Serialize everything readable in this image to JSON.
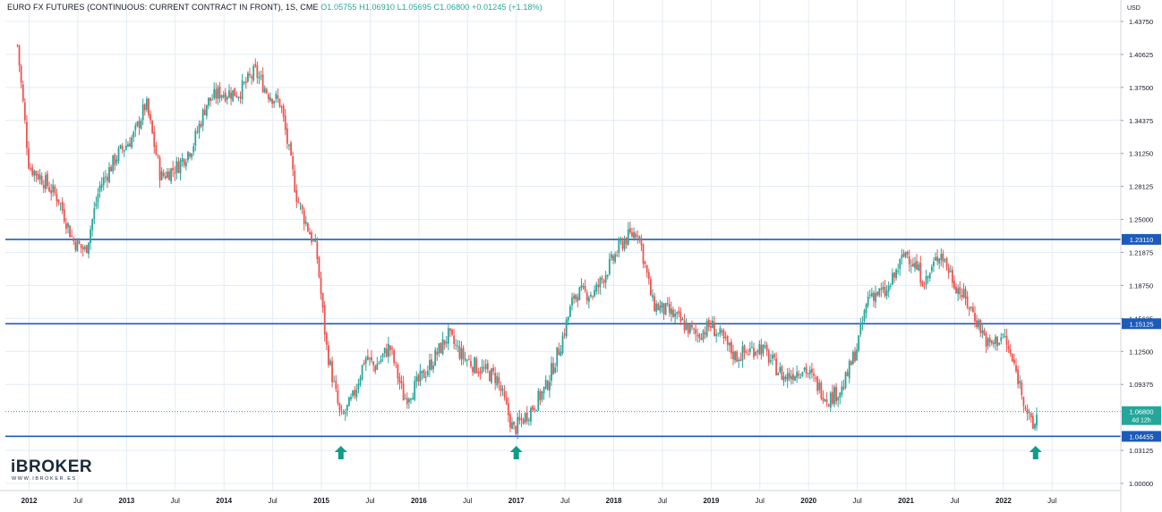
{
  "header": {
    "title": "EURO FX FUTURES (CONTINUOUS: CURRENT CONTRACT IN FRONT), 1S, CME",
    "open": "O1.05755",
    "high": "H1.06910",
    "low": "L1.05695",
    "close": "C1.06800",
    "change": "+0.01245 (+1.18%)"
  },
  "brand": {
    "name": "iBROKER",
    "url": "WWW.IBROKER.ES"
  },
  "colors": {
    "up": "#26a69a",
    "down": "#ef5350",
    "level_line": "#1e5bb8",
    "grid": "#e3ecf5",
    "arrow": "#0f9d8a"
  },
  "chart_data": {
    "type": "candlestick",
    "currency_label": "USD",
    "ylim": [
      1.0,
      1.4375
    ],
    "y_ticks": [
      "1.43750",
      "1.40625",
      "1.37500",
      "1.34375",
      "1.31250",
      "1.28125",
      "1.25000",
      "1.21875",
      "1.18750",
      "1.15625",
      "1.12500",
      "1.09375",
      "1.03125",
      "1.00000"
    ],
    "x_ticks": [
      "2012",
      "Jul",
      "2013",
      "Jul",
      "2014",
      "Jul",
      "2015",
      "Jul",
      "2016",
      "Jul",
      "2017",
      "Jul",
      "2018",
      "Jul",
      "2019",
      "Jul",
      "2020",
      "Jul",
      "2021",
      "Jul",
      "2022",
      "Jul"
    ],
    "horizontal_levels": [
      {
        "price": 1.2311,
        "label": "1.23110"
      },
      {
        "price": 1.15125,
        "label": "1.15125"
      },
      {
        "price": 1.04455,
        "label": "1.04455"
      }
    ],
    "last_price": {
      "price": 1.068,
      "label": "1.06800",
      "countdown": "4d 12h"
    },
    "support_arrows": [
      {
        "date": 2015.2,
        "price": 1.043
      },
      {
        "date": 2017.0,
        "price": 1.043
      },
      {
        "date": 2022.33,
        "price": 1.043
      }
    ],
    "price_path": [
      [
        2011.88,
        1.415
      ],
      [
        2012.0,
        1.3
      ],
      [
        2012.12,
        1.29
      ],
      [
        2012.3,
        1.27
      ],
      [
        2012.45,
        1.23
      ],
      [
        2012.58,
        1.22
      ],
      [
        2012.72,
        1.28
      ],
      [
        2012.9,
        1.31
      ],
      [
        2013.08,
        1.33
      ],
      [
        2013.2,
        1.36
      ],
      [
        2013.35,
        1.29
      ],
      [
        2013.52,
        1.3
      ],
      [
        2013.68,
        1.32
      ],
      [
        2013.82,
        1.36
      ],
      [
        2013.95,
        1.37
      ],
      [
        2014.15,
        1.37
      ],
      [
        2014.32,
        1.39
      ],
      [
        2014.45,
        1.37
      ],
      [
        2014.58,
        1.36
      ],
      [
        2014.75,
        1.27
      ],
      [
        2014.95,
        1.22
      ],
      [
        2015.05,
        1.13
      ],
      [
        2015.2,
        1.06
      ],
      [
        2015.32,
        1.08
      ],
      [
        2015.45,
        1.12
      ],
      [
        2015.55,
        1.11
      ],
      [
        2015.7,
        1.13
      ],
      [
        2015.85,
        1.08
      ],
      [
        2015.95,
        1.09
      ],
      [
        2016.1,
        1.11
      ],
      [
        2016.3,
        1.14
      ],
      [
        2016.45,
        1.12
      ],
      [
        2016.6,
        1.11
      ],
      [
        2016.8,
        1.1
      ],
      [
        2016.97,
        1.05
      ],
      [
        2017.15,
        1.07
      ],
      [
        2017.3,
        1.09
      ],
      [
        2017.45,
        1.13
      ],
      [
        2017.6,
        1.18
      ],
      [
        2017.8,
        1.18
      ],
      [
        2018.1,
        1.23
      ],
      [
        2018.25,
        1.24
      ],
      [
        2018.4,
        1.17
      ],
      [
        2018.6,
        1.16
      ],
      [
        2018.85,
        1.14
      ],
      [
        2019.0,
        1.15
      ],
      [
        2019.25,
        1.12
      ],
      [
        2019.5,
        1.13
      ],
      [
        2019.75,
        1.1
      ],
      [
        2019.95,
        1.11
      ],
      [
        2020.2,
        1.08
      ],
      [
        2020.35,
        1.09
      ],
      [
        2020.5,
        1.13
      ],
      [
        2020.62,
        1.18
      ],
      [
        2020.8,
        1.18
      ],
      [
        2021.0,
        1.22
      ],
      [
        2021.2,
        1.19
      ],
      [
        2021.35,
        1.22
      ],
      [
        2021.5,
        1.19
      ],
      [
        2021.7,
        1.16
      ],
      [
        2021.85,
        1.13
      ],
      [
        2022.0,
        1.14
      ],
      [
        2022.15,
        1.1
      ],
      [
        2022.3,
        1.05
      ],
      [
        2022.35,
        1.068
      ]
    ]
  }
}
